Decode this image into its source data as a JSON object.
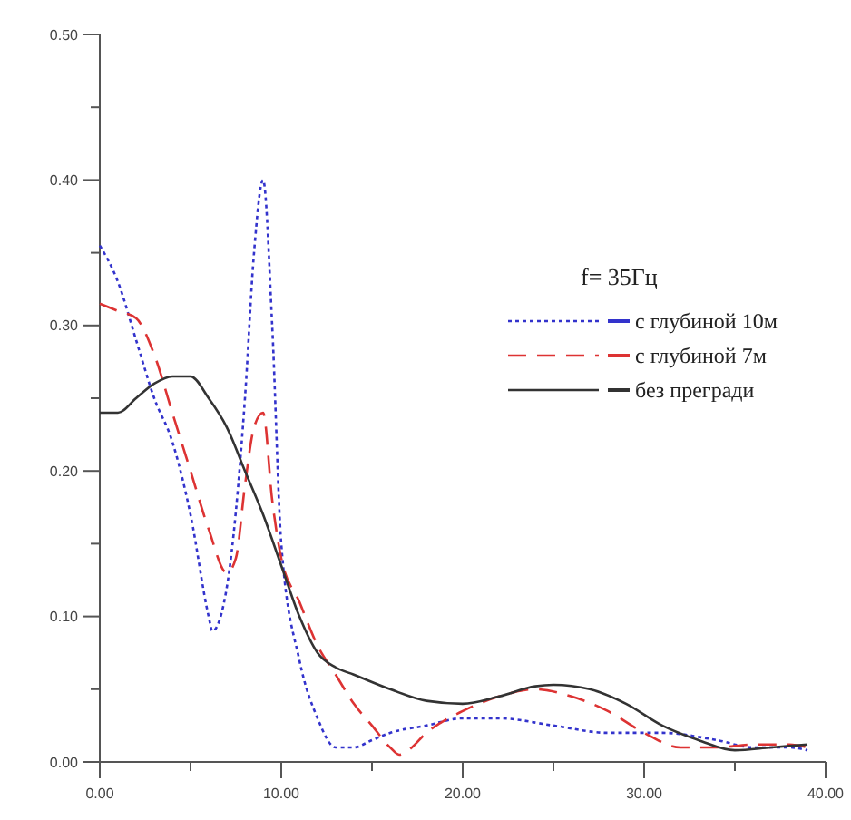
{
  "chart_data": {
    "type": "line",
    "legend_title": "f= 35Гц",
    "legend": "right",
    "grid": false,
    "xlim": [
      0,
      40
    ],
    "ylim": [
      0,
      0.5
    ],
    "xticks": [
      {
        "value": 0,
        "label": "0.00"
      },
      {
        "value": 5,
        "label": null
      },
      {
        "value": 10,
        "label": "10.00"
      },
      {
        "value": 15,
        "label": null
      },
      {
        "value": 20,
        "label": "20.00"
      },
      {
        "value": 25,
        "label": null
      },
      {
        "value": 30,
        "label": "30.00"
      },
      {
        "value": 35,
        "label": null
      },
      {
        "value": 40,
        "label": "40.00"
      }
    ],
    "yticks": [
      {
        "value": 0,
        "label": "0.00"
      },
      {
        "value": 0.05,
        "label": null
      },
      {
        "value": 0.1,
        "label": "0.10"
      },
      {
        "value": 0.15,
        "label": null
      },
      {
        "value": 0.2,
        "label": "0.20"
      },
      {
        "value": 0.25,
        "label": null
      },
      {
        "value": 0.3,
        "label": "0.30"
      },
      {
        "value": 0.35,
        "label": null
      },
      {
        "value": 0.4,
        "label": "0.40"
      },
      {
        "value": 0.45,
        "label": null
      },
      {
        "value": 0.5,
        "label": "0.50"
      }
    ],
    "series": [
      {
        "name": "с глубиной 10м",
        "color": "#3333cc",
        "line_style": "dotted",
        "x": [
          0,
          1,
          2,
          3,
          4,
          5,
          6,
          6.2,
          7,
          8,
          8.5,
          9,
          9.5,
          10,
          11,
          12,
          13,
          14,
          15,
          16,
          18,
          20,
          22,
          25,
          28,
          31,
          34,
          36,
          38,
          39
        ],
        "values": [
          0.355,
          0.33,
          0.29,
          0.25,
          0.22,
          0.17,
          0.1,
          0.09,
          0.12,
          0.25,
          0.35,
          0.4,
          0.3,
          0.15,
          0.07,
          0.03,
          0.01,
          0.01,
          0.015,
          0.02,
          0.025,
          0.03,
          0.03,
          0.025,
          0.02,
          0.02,
          0.015,
          0.01,
          0.01,
          0.008
        ]
      },
      {
        "name": "с глубиной 7м",
        "color": "#dd3333",
        "line_style": "dashed",
        "x": [
          0,
          1,
          2,
          3,
          4,
          5,
          6,
          7,
          7.5,
          8,
          8.5,
          9,
          9.5,
          10,
          11,
          12,
          13,
          14,
          15,
          16,
          16.5,
          17,
          18,
          20,
          22,
          24,
          26,
          28,
          30,
          32,
          34,
          36,
          38,
          39
        ],
        "values": [
          0.315,
          0.31,
          0.305,
          0.28,
          0.24,
          0.2,
          0.16,
          0.13,
          0.14,
          0.19,
          0.23,
          0.24,
          0.18,
          0.14,
          0.11,
          0.08,
          0.06,
          0.04,
          0.025,
          0.01,
          0.005,
          0.008,
          0.02,
          0.035,
          0.045,
          0.05,
          0.045,
          0.035,
          0.02,
          0.01,
          0.01,
          0.012,
          0.012,
          0.01
        ]
      },
      {
        "name": "без прегради",
        "color": "#333333",
        "line_style": "solid",
        "x": [
          0,
          1,
          2,
          3,
          4,
          5,
          6,
          7,
          8,
          9,
          10,
          11,
          12,
          13,
          14,
          16,
          18,
          20,
          22,
          24,
          25,
          27,
          29,
          31,
          33,
          35,
          37,
          39
        ],
        "values": [
          0.24,
          0.24,
          0.25,
          0.26,
          0.265,
          0.265,
          0.25,
          0.23,
          0.2,
          0.17,
          0.135,
          0.1,
          0.075,
          0.065,
          0.06,
          0.05,
          0.042,
          0.04,
          0.045,
          0.052,
          0.053,
          0.05,
          0.04,
          0.025,
          0.015,
          0.008,
          0.01,
          0.012
        ]
      }
    ]
  }
}
